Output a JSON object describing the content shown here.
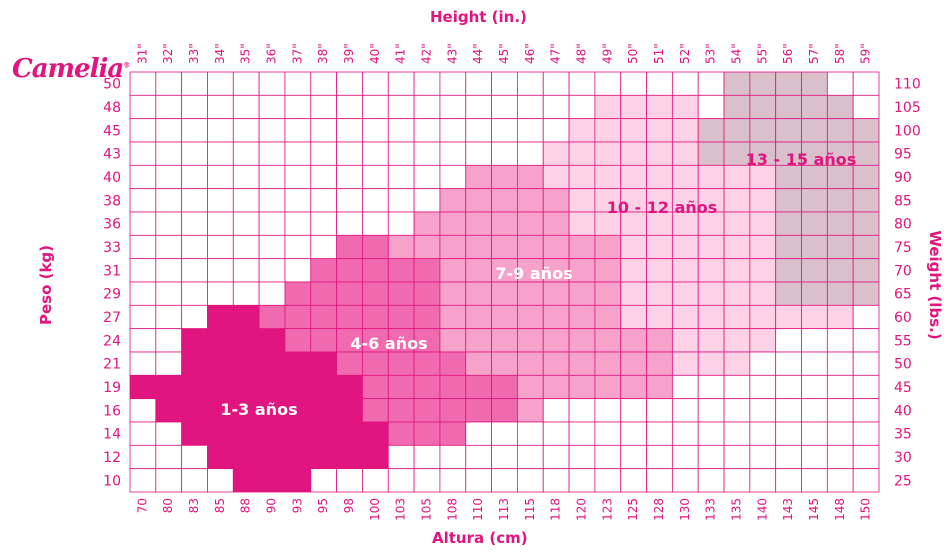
{
  "brand": {
    "name": "Camelia",
    "mark": "®"
  },
  "chart_data": {
    "type": "heatmap",
    "title": "Height (in.)",
    "xlabel": "Altura (cm)",
    "ylabel": "Peso (kg)",
    "ylabel_right": "Weight (lbs.)",
    "xlabel_top": "Height (in.)",
    "x_cm": [
      "70",
      "80",
      "83",
      "85",
      "88",
      "90",
      "93",
      "95",
      "98",
      "100",
      "103",
      "105",
      "108",
      "110",
      "113",
      "115",
      "118",
      "120",
      "123",
      "125",
      "128",
      "130",
      "133",
      "135",
      "140",
      "143",
      "145",
      "148",
      "150"
    ],
    "x_in": [
      "31\"",
      "32\"",
      "33\"",
      "34\"",
      "35\"",
      "36\"",
      "37\"",
      "38\"",
      "39\"",
      "40\"",
      "41\"",
      "42\"",
      "43\"",
      "44\"",
      "45\"",
      "46\"",
      "47\"",
      "48\"",
      "49\"",
      "50\"",
      "51\"",
      "52\"",
      "53\"",
      "54\"",
      "55\"",
      "56\"",
      "57\"",
      "58\"",
      "59\""
    ],
    "y_kg": [
      "50",
      "48",
      "45",
      "43",
      "40",
      "38",
      "36",
      "33",
      "31",
      "29",
      "27",
      "24",
      "21",
      "19",
      "16",
      "14",
      "12",
      "10"
    ],
    "y_lbs": [
      "110",
      "105",
      "100",
      "95",
      "90",
      "85",
      "80",
      "75",
      "70",
      "65",
      "60",
      "55",
      "50",
      "45",
      "40",
      "35",
      "30",
      "25"
    ],
    "zones": [
      {
        "name": "1-3 años",
        "color": "#e0157f",
        "rows": [
          [],
          [],
          [],
          [],
          [],
          [],
          [],
          [],
          [],
          [],
          [
            3,
            4
          ],
          [
            2,
            5
          ],
          [
            2,
            7
          ],
          [
            0,
            8
          ],
          [
            1,
            8
          ],
          [
            2,
            9
          ],
          [
            3,
            9
          ],
          [
            4,
            6
          ]
        ]
      },
      {
        "name": "4-6 años",
        "color": "#f06aaf",
        "rows": [
          [],
          [],
          [],
          [],
          [],
          [],
          [],
          [
            8,
            9
          ],
          [
            7,
            11
          ],
          [
            6,
            11
          ],
          [
            5,
            11
          ],
          [
            6,
            11
          ],
          [
            8,
            12
          ],
          [
            9,
            14
          ],
          [
            9,
            14
          ],
          [
            10,
            12
          ],
          [],
          []
        ]
      },
      {
        "name": "7-9 años",
        "color": "#f7a2cb",
        "rows": [
          [],
          [],
          [],
          [],
          [
            13,
            15
          ],
          [
            12,
            16
          ],
          [
            11,
            16
          ],
          [
            10,
            18
          ],
          [
            12,
            18
          ],
          [
            12,
            18
          ],
          [
            12,
            18
          ],
          [
            12,
            20
          ],
          [
            13,
            20
          ],
          [
            15,
            20
          ],
          [
            15,
            15
          ],
          [],
          [],
          []
        ]
      },
      {
        "name": "10 - 12 años",
        "color": "#fdd2e6",
        "rows": [
          [],
          [
            18,
            21
          ],
          [
            17,
            22
          ],
          [
            16,
            22
          ],
          [
            16,
            24
          ],
          [
            17,
            24
          ],
          [
            17,
            24
          ],
          [
            19,
            24
          ],
          [
            19,
            24
          ],
          [
            19,
            24
          ],
          [
            19,
            27
          ],
          [
            21,
            24
          ],
          [
            21,
            23
          ],
          [],
          [],
          [],
          [],
          []
        ]
      },
      {
        "name": "13 - 15 años",
        "color": "#d9c0cb",
        "rows": [
          [
            23,
            26
          ],
          [
            23,
            27
          ],
          [
            22,
            28
          ],
          [
            22,
            28
          ],
          [
            25,
            28
          ],
          [
            25,
            28
          ],
          [
            25,
            28
          ],
          [
            25,
            28
          ],
          [
            25,
            28
          ],
          [
            25,
            28
          ],
          [],
          [],
          [],
          [],
          [],
          [],
          [],
          []
        ]
      }
    ],
    "grid": true
  },
  "zone_labels": [
    "1-3 años",
    "4-6 años",
    "7-9 años",
    "10 - 12 años",
    "13 - 15 años"
  ],
  "colors": {
    "accent": "#e0157f",
    "grid": "#e0157f",
    "cell_empty": "#ffffff"
  }
}
